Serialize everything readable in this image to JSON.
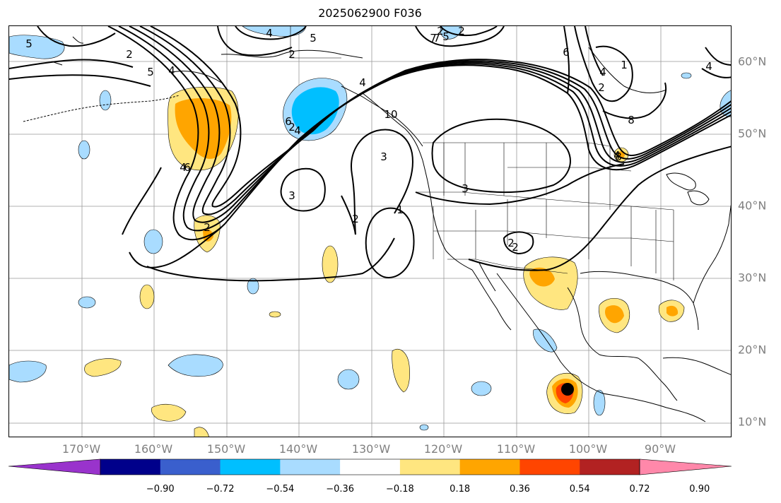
{
  "title": "2025062900 F036",
  "longitude_labels": [
    "170°W",
    "160°W",
    "150°W",
    "140°W",
    "130°W",
    "120°W",
    "110°W",
    "100°W",
    "90°W"
  ],
  "latitude_labels": [
    "60°N",
    "50°N",
    "40°N",
    "30°N",
    "20°N",
    "10°N"
  ],
  "contour_labels": [
    "5",
    "4",
    "5",
    "2",
    "5",
    "2",
    "7",
    "2",
    "2",
    "4",
    "5",
    "6",
    "4",
    "8",
    "4",
    "2",
    "4",
    "6",
    "3",
    "10",
    "4",
    "3",
    "2",
    "1",
    "2",
    "3",
    "2",
    "4",
    "1",
    "2",
    "7",
    "6",
    "8",
    "4",
    "2"
  ],
  "colorbar": {
    "ticks": [
      "−0.90",
      "−0.72",
      "−0.54",
      "−0.36",
      "−0.18",
      "0.18",
      "0.36",
      "0.54",
      "0.72",
      "0.90"
    ],
    "colors": [
      "#9933cc",
      "#00008b",
      "#3a5fcd",
      "#00bfff",
      "#a9dcff",
      "#ffffff",
      "#ffe680",
      "#ffa500",
      "#ff4500",
      "#b22222",
      "#ff88aa"
    ]
  },
  "colors": {
    "grid": "#999999",
    "axis_label": "#808080",
    "contour": "#000000",
    "light_blue": "#a9dcff",
    "cyan": "#00bfff",
    "yellow": "#ffe680",
    "orange": "#ffa500",
    "red_orange": "#ff4500",
    "storm_marker": "#000000"
  }
}
